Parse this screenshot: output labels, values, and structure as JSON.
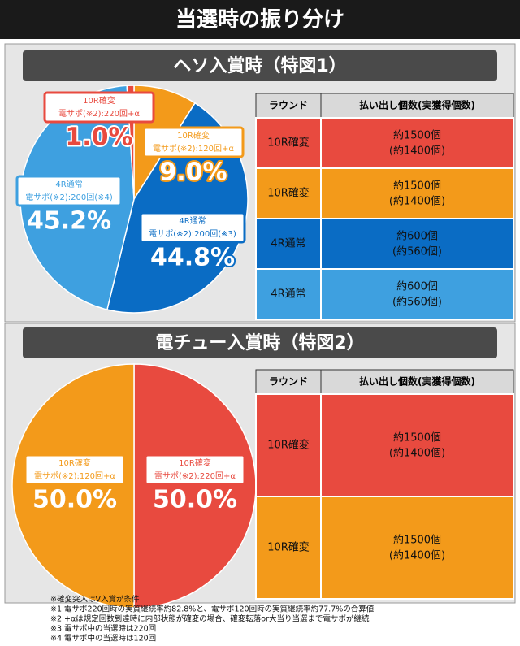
{
  "title": "当選時の振り分け",
  "section_headers": [
    "ヘソ入賞時（特図1）",
    "電チュー入賞時（特図2）"
  ],
  "chart_data": [
    {
      "type": "pie",
      "categories": [
        "10R確変",
        "4R通常",
        "4R通常",
        "10R確変"
      ],
      "sublabels": [
        "電サポ(※2):120回+α",
        "電サポ(※2):200回(※3)",
        "電サポ(※2):200回(※4)",
        "電サポ(※2):220回+α"
      ],
      "values": [
        9.0,
        44.8,
        45.2,
        1.0
      ],
      "value_labels": [
        "9.0%",
        "44.8%",
        "45.2%",
        "1.0%"
      ],
      "colors": [
        "#f39a1a",
        "#0a6cc4",
        "#3ea0e0",
        "#e84a3f"
      ]
    },
    {
      "type": "pie",
      "categories": [
        "10R確変",
        "10R確変"
      ],
      "sublabels": [
        "電サポ(※2):220回+α",
        "電サポ(※2):120回+α"
      ],
      "values": [
        50.0,
        50.0
      ],
      "value_labels": [
        "50.0%",
        "50.0%"
      ],
      "colors": [
        "#e84a3f",
        "#f39a1a"
      ]
    }
  ],
  "tables": [
    {
      "headers": [
        "ラウンド",
        "払い出し個数(実獲得個数)"
      ],
      "rows": [
        [
          "10R確変",
          "約1500個",
          "(約1400個)"
        ],
        [
          "10R確変",
          "約1500個",
          "(約1400個)"
        ],
        [
          "4R通常",
          "約600個",
          "(約560個)"
        ],
        [
          "4R通常",
          "約600個",
          "(約560個)"
        ]
      ],
      "row_colors": [
        "#e84a3f",
        "#f39a1a",
        "#0a6cc4",
        "#3ea0e0"
      ]
    },
    {
      "headers": [
        "ラウンド",
        "払い出し個数(実獲得個数)"
      ],
      "rows": [
        [
          "10R確変",
          "約1500個",
          "(約1400個)"
        ],
        [
          "10R確変",
          "約1500個",
          "(約1400個)"
        ]
      ],
      "row_colors": [
        "#e84a3f",
        "#f39a1a"
      ]
    }
  ],
  "notes": [
    "※確変突入はV入賞が条件",
    "※1 電サポ220回時の実質継続率約82.8%と、電サポ120回時の実質継続率約77.7%の合算値",
    "※2 +αは規定回数到達時に内部状態が確変の場合、確変転落or大当り当選まで電サポが継続",
    "※3 電サポ中の当選時は220回",
    "※4 電サポ中の当選時は120回"
  ]
}
